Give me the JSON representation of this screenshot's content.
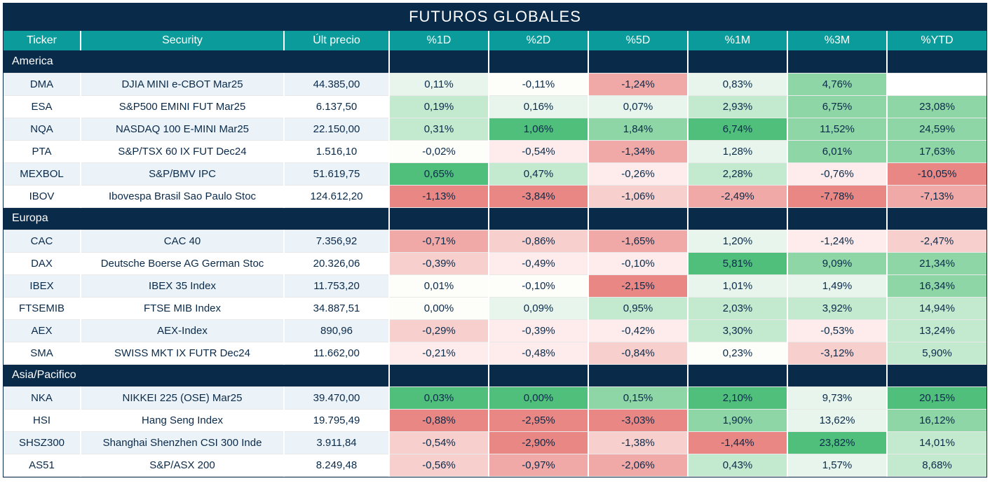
{
  "title": "FUTUROS GLOBALES",
  "columns": [
    "Ticker",
    "Security",
    "Últ precio",
    "%1D",
    "%2D",
    "%5D",
    "%1M",
    "%3M",
    "%YTD"
  ],
  "column_widths": [
    "110px",
    "290px",
    "150px",
    "142px",
    "142px",
    "142px",
    "142px",
    "142px",
    "142px"
  ],
  "colors": {
    "title_bg": "#0a2a4a",
    "header_bg": "#0b9b9b",
    "text": "#0a2a4a",
    "row_odd_bg": "#ebf3f9",
    "row_even_bg": "#ffffff"
  },
  "heat": {
    "pos4": "#4fbf7b",
    "pos3": "#8ed6a6",
    "pos2": "#c3e9cf",
    "pos1": "#e7f5ec",
    "neu": "#fdfdfa",
    "neg1": "#fdeceb",
    "neg2": "#f7cfcd",
    "neg3": "#f0a9a6",
    "neg4": "#e88783"
  },
  "sections": [
    {
      "label": "America",
      "rows": [
        {
          "ticker": "DMA",
          "security": "DJIA MINI e-CBOT  Mar25",
          "price": "44.385,00",
          "pcts": [
            {
              "v": "0,11%",
              "h": "pos1"
            },
            {
              "v": "-0,11%",
              "h": "neu"
            },
            {
              "v": "-1,24%",
              "h": "neg3"
            },
            {
              "v": "0,83%",
              "h": "pos1"
            },
            {
              "v": "4,76%",
              "h": "pos3"
            },
            {
              "v": "",
              "h": "blank"
            }
          ]
        },
        {
          "ticker": "ESA",
          "security": "S&P500 EMINI FUT  Mar25",
          "price": "6.137,50",
          "pcts": [
            {
              "v": "0,19%",
              "h": "pos2"
            },
            {
              "v": "0,16%",
              "h": "pos1"
            },
            {
              "v": "0,07%",
              "h": "pos1"
            },
            {
              "v": "2,93%",
              "h": "pos2"
            },
            {
              "v": "6,75%",
              "h": "pos3"
            },
            {
              "v": "23,08%",
              "h": "pos3"
            }
          ]
        },
        {
          "ticker": "NQA",
          "security": "NASDAQ 100 E-MINI Mar25",
          "price": "22.150,00",
          "pcts": [
            {
              "v": "0,31%",
              "h": "pos2"
            },
            {
              "v": "1,06%",
              "h": "pos4"
            },
            {
              "v": "1,84%",
              "h": "pos3"
            },
            {
              "v": "6,74%",
              "h": "pos4"
            },
            {
              "v": "11,52%",
              "h": "pos3"
            },
            {
              "v": "24,59%",
              "h": "pos3"
            }
          ]
        },
        {
          "ticker": "PTA",
          "security": "S&P/TSX 60 IX FUT Dec24",
          "price": "1.516,10",
          "pcts": [
            {
              "v": "-0,02%",
              "h": "neu"
            },
            {
              "v": "-0,54%",
              "h": "neg1"
            },
            {
              "v": "-1,34%",
              "h": "neg3"
            },
            {
              "v": "1,28%",
              "h": "pos1"
            },
            {
              "v": "6,01%",
              "h": "pos3"
            },
            {
              "v": "17,63%",
              "h": "pos3"
            }
          ]
        },
        {
          "ticker": "MEXBOL",
          "security": "S&P/BMV IPC",
          "price": "51.619,75",
          "pcts": [
            {
              "v": "0,65%",
              "h": "pos4"
            },
            {
              "v": "0,47%",
              "h": "pos2"
            },
            {
              "v": "-0,26%",
              "h": "neg1"
            },
            {
              "v": "2,28%",
              "h": "pos2"
            },
            {
              "v": "-0,76%",
              "h": "neg1"
            },
            {
              "v": "-10,05%",
              "h": "neg4"
            }
          ]
        },
        {
          "ticker": "IBOV",
          "security": "Ibovespa Brasil Sao Paulo Stoc",
          "price": "124.612,20",
          "pcts": [
            {
              "v": "-1,13%",
              "h": "neg4"
            },
            {
              "v": "-3,84%",
              "h": "neg4"
            },
            {
              "v": "-1,06%",
              "h": "neg2"
            },
            {
              "v": "-2,49%",
              "h": "neg3"
            },
            {
              "v": "-7,78%",
              "h": "neg4"
            },
            {
              "v": "-7,13%",
              "h": "neg3"
            }
          ]
        }
      ]
    },
    {
      "label": "Europa",
      "rows": [
        {
          "ticker": "CAC",
          "security": "CAC 40",
          "price": "7.356,92",
          "pcts": [
            {
              "v": "-0,71%",
              "h": "neg3"
            },
            {
              "v": "-0,86%",
              "h": "neg2"
            },
            {
              "v": "-1,65%",
              "h": "neg3"
            },
            {
              "v": "1,20%",
              "h": "pos1"
            },
            {
              "v": "-1,24%",
              "h": "neg1"
            },
            {
              "v": "-2,47%",
              "h": "neg2"
            }
          ]
        },
        {
          "ticker": "DAX",
          "security": "Deutsche Boerse AG German Stoc",
          "price": "20.326,06",
          "pcts": [
            {
              "v": "-0,39%",
              "h": "neg2"
            },
            {
              "v": "-0,49%",
              "h": "neg1"
            },
            {
              "v": "-0,10%",
              "h": "neg1"
            },
            {
              "v": "5,81%",
              "h": "pos4"
            },
            {
              "v": "9,09%",
              "h": "pos3"
            },
            {
              "v": "21,34%",
              "h": "pos3"
            }
          ]
        },
        {
          "ticker": "IBEX",
          "security": "IBEX 35 Index",
          "price": "11.753,20",
          "pcts": [
            {
              "v": "0,01%",
              "h": "neu"
            },
            {
              "v": "-0,10%",
              "h": "neu"
            },
            {
              "v": "-2,15%",
              "h": "neg4"
            },
            {
              "v": "1,01%",
              "h": "pos1"
            },
            {
              "v": "1,49%",
              "h": "pos1"
            },
            {
              "v": "16,34%",
              "h": "pos3"
            }
          ]
        },
        {
          "ticker": "FTSEMIB",
          "security": "FTSE MIB Index",
          "price": "34.887,51",
          "pcts": [
            {
              "v": "0,00%",
              "h": "neu"
            },
            {
              "v": "0,09%",
              "h": "pos1"
            },
            {
              "v": "0,95%",
              "h": "pos2"
            },
            {
              "v": "2,03%",
              "h": "pos2"
            },
            {
              "v": "3,92%",
              "h": "pos2"
            },
            {
              "v": "14,94%",
              "h": "pos2"
            }
          ]
        },
        {
          "ticker": "AEX",
          "security": "AEX-Index",
          "price": "890,96",
          "pcts": [
            {
              "v": "-0,29%",
              "h": "neg2"
            },
            {
              "v": "-0,39%",
              "h": "neg1"
            },
            {
              "v": "-0,42%",
              "h": "neg1"
            },
            {
              "v": "3,30%",
              "h": "pos2"
            },
            {
              "v": "-0,53%",
              "h": "neg1"
            },
            {
              "v": "13,24%",
              "h": "pos2"
            }
          ]
        },
        {
          "ticker": "SMA",
          "security": "SWISS MKT IX FUTR Dec24",
          "price": "11.662,00",
          "pcts": [
            {
              "v": "-0,21%",
              "h": "neg1"
            },
            {
              "v": "-0,48%",
              "h": "neg1"
            },
            {
              "v": "-0,84%",
              "h": "neg2"
            },
            {
              "v": "0,23%",
              "h": "neu"
            },
            {
              "v": "-3,12%",
              "h": "neg2"
            },
            {
              "v": "5,90%",
              "h": "pos2"
            }
          ]
        }
      ]
    },
    {
      "label": "Asia/Pacifico",
      "rows": [
        {
          "ticker": "NKA",
          "security": "NIKKEI 225  (OSE) Mar25",
          "price": "39.470,00",
          "pcts": [
            {
              "v": "0,03%",
              "h": "pos4"
            },
            {
              "v": "0,00%",
              "h": "pos4"
            },
            {
              "v": "0,15%",
              "h": "pos3"
            },
            {
              "v": "2,10%",
              "h": "pos4"
            },
            {
              "v": "9,73%",
              "h": "pos1"
            },
            {
              "v": "20,15%",
              "h": "pos4"
            }
          ]
        },
        {
          "ticker": "HSI",
          "security": "Hang Seng Index",
          "price": "19.795,49",
          "pcts": [
            {
              "v": "-0,88%",
              "h": "neg4"
            },
            {
              "v": "-2,95%",
              "h": "neg4"
            },
            {
              "v": "-3,03%",
              "h": "neg4"
            },
            {
              "v": "1,90%",
              "h": "pos3"
            },
            {
              "v": "13,62%",
              "h": "pos1"
            },
            {
              "v": "16,12%",
              "h": "pos3"
            }
          ]
        },
        {
          "ticker": "SHSZ300",
          "security": "Shanghai Shenzhen CSI 300 Inde",
          "price": "3.911,84",
          "pcts": [
            {
              "v": "-0,54%",
              "h": "neg2"
            },
            {
              "v": "-2,90%",
              "h": "neg4"
            },
            {
              "v": "-1,38%",
              "h": "neg2"
            },
            {
              "v": "-1,44%",
              "h": "neg4"
            },
            {
              "v": "23,82%",
              "h": "pos4"
            },
            {
              "v": "14,01%",
              "h": "pos2"
            }
          ]
        },
        {
          "ticker": "AS51",
          "security": "S&P/ASX 200",
          "price": "8.249,48",
          "pcts": [
            {
              "v": "-0,56%",
              "h": "neg2"
            },
            {
              "v": "-0,97%",
              "h": "neg3"
            },
            {
              "v": "-2,06%",
              "h": "neg3"
            },
            {
              "v": "0,43%",
              "h": "pos2"
            },
            {
              "v": "1,57%",
              "h": "pos1"
            },
            {
              "v": "8,68%",
              "h": "pos2"
            }
          ]
        }
      ]
    }
  ]
}
